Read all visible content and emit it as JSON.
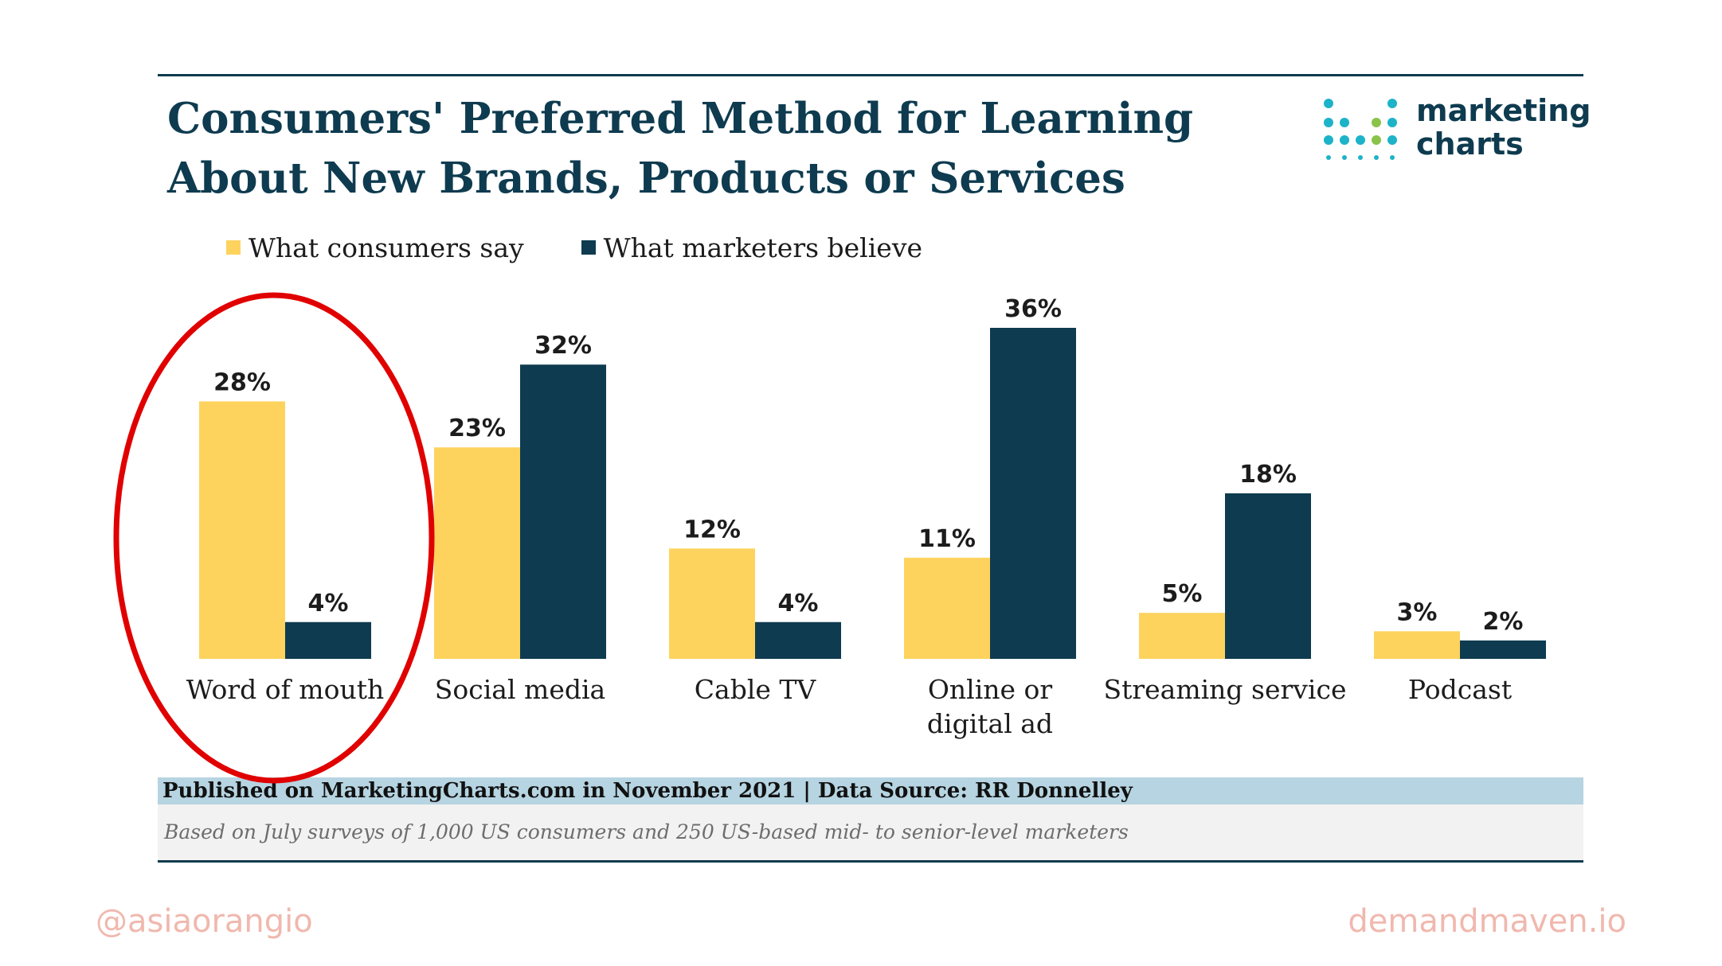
{
  "header": {
    "title_line1": "Consumers' Preferred Method for Learning",
    "title_line2": "About New Brands, Products or Services"
  },
  "logo": {
    "line1": "marketing",
    "line2": "charts"
  },
  "colors": {
    "consumers": "#fdd35e",
    "marketers": "#0e3b4f",
    "annotation": "#e00000",
    "brand": "#0e3b4f"
  },
  "chart_data": {
    "type": "bar",
    "title": "Consumers' Preferred Method for Learning About New Brands, Products or Services",
    "categories": [
      "Word of mouth",
      "Social media",
      "Cable TV",
      "Online or digital ad",
      "Streaming service",
      "Podcast"
    ],
    "category_lines": [
      [
        "Word of mouth"
      ],
      [
        "Social media"
      ],
      [
        "Cable TV"
      ],
      [
        "Online or",
        "digital ad"
      ],
      [
        "Streaming service"
      ],
      [
        "Podcast"
      ]
    ],
    "series": [
      {
        "name": "What consumers say",
        "values": [
          28,
          23,
          12,
          11,
          5,
          3
        ],
        "labels": [
          "28%",
          "23%",
          "12%",
          "11%",
          "5%",
          "3%"
        ]
      },
      {
        "name": "What marketers believe",
        "values": [
          4,
          32,
          4,
          36,
          18,
          2
        ],
        "labels": [
          "4%",
          "32%",
          "4%",
          "36%",
          "18%",
          "2%"
        ]
      }
    ],
    "ylim": [
      0,
      36
    ],
    "legend": "top-left",
    "grid": false,
    "highlighted_category": "Word of mouth"
  },
  "footer": {
    "published": "Published on MarketingCharts.com in November 2021 | Data Source: RR Donnelley",
    "note": "Based on July surveys of 1,000 US consumers and 250 US-based mid- to senior-level marketers"
  },
  "credits": {
    "left": "@asiaorangio",
    "right": "demandmaven.io"
  }
}
